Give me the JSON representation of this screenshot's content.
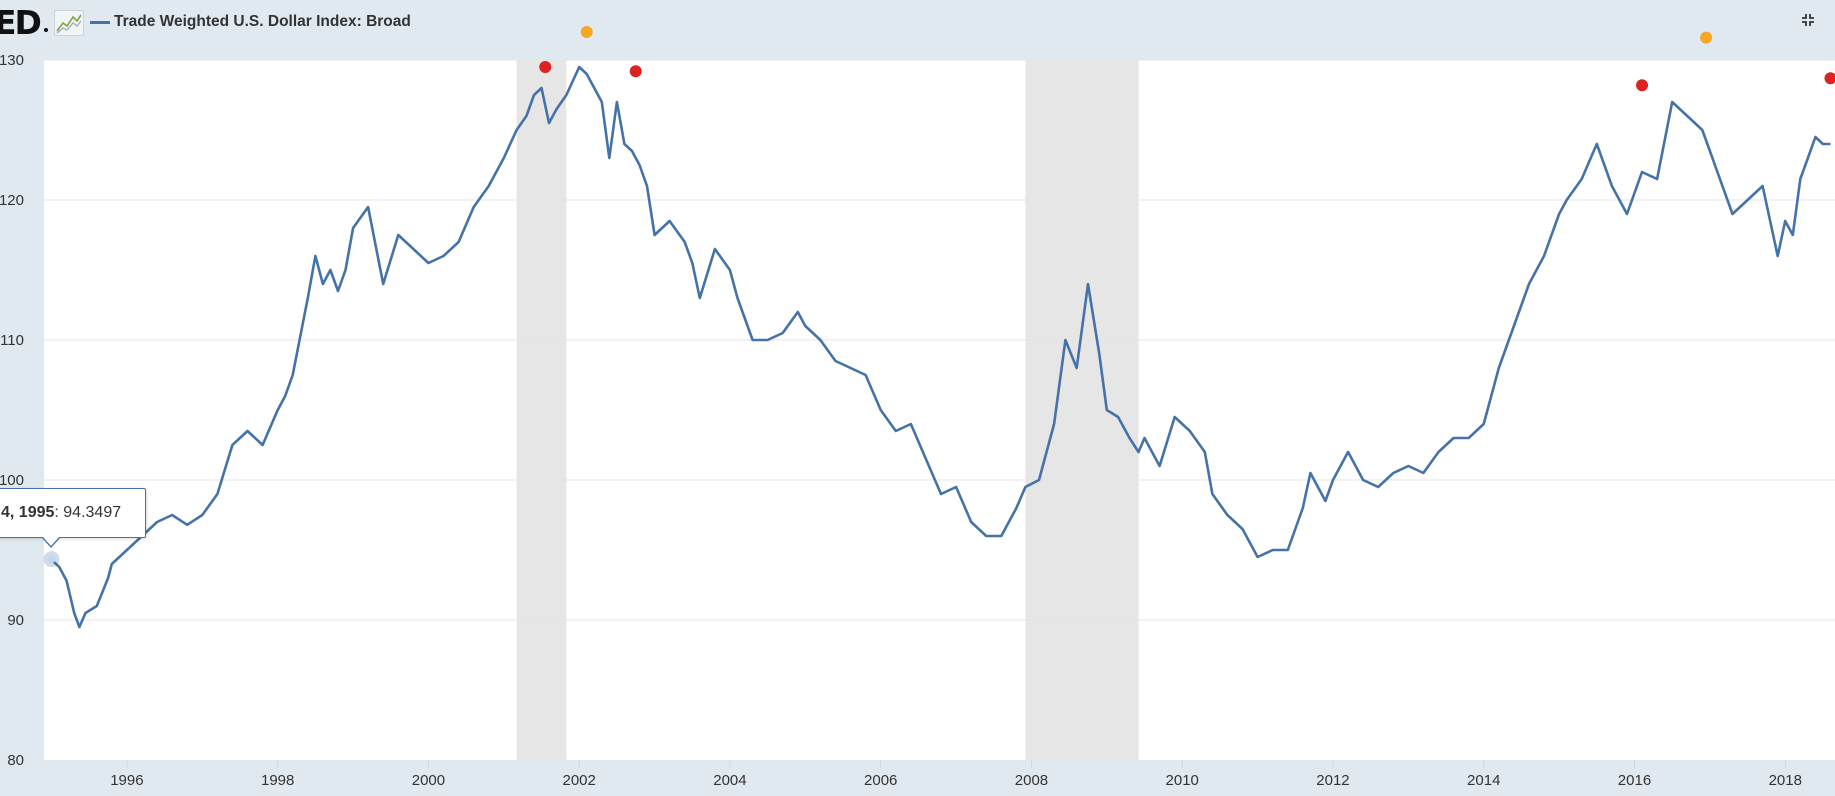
{
  "header": {
    "logo_text": "ED",
    "series_title": "Trade Weighted U.S. Dollar Index: Broad",
    "spark_icon": "sparkline-icon",
    "collapse_icon": "collapse-icon"
  },
  "tooltip": {
    "date": "4, 1995",
    "separator": ": ",
    "value": "94.3497"
  },
  "chart_data": {
    "type": "line",
    "title": "Trade Weighted U.S. Dollar Index: Broad",
    "xlabel": "",
    "ylabel": "",
    "xlim": [
      1994.9,
      2018.66
    ],
    "ylim": [
      80,
      130
    ],
    "yticks": [
      80,
      90,
      100,
      110,
      120,
      130
    ],
    "xticks": [
      1996,
      1998,
      2000,
      2002,
      2004,
      2006,
      2008,
      2010,
      2012,
      2014,
      2016,
      2018
    ],
    "grid": true,
    "line_color": "#4572a7",
    "recession_color": "#e6e6e6",
    "recessions": [
      {
        "start": 2001.17,
        "end": 2001.83
      },
      {
        "start": 2007.92,
        "end": 2009.42
      }
    ],
    "series": [
      {
        "name": "Trade Weighted U.S. Dollar Index: Broad",
        "x": [
          1995.0,
          1995.1,
          1995.2,
          1995.3,
          1995.37,
          1995.45,
          1995.6,
          1995.75,
          1995.8,
          1995.9,
          1996.0,
          1996.2,
          1996.4,
          1996.6,
          1996.8,
          1997.0,
          1997.2,
          1997.4,
          1997.6,
          1997.8,
          1998.0,
          1998.1,
          1998.2,
          1998.4,
          1998.5,
          1998.6,
          1998.7,
          1998.8,
          1998.9,
          1999.0,
          1999.2,
          1999.4,
          1999.6,
          1999.8,
          2000.0,
          2000.2,
          2000.4,
          2000.6,
          2000.8,
          2001.0,
          2001.17,
          2001.3,
          2001.4,
          2001.5,
          2001.6,
          2001.7,
          2001.83,
          2002.0,
          2002.1,
          2002.3,
          2002.4,
          2002.5,
          2002.6,
          2002.7,
          2002.8,
          2002.9,
          2003.0,
          2003.2,
          2003.4,
          2003.5,
          2003.6,
          2003.8,
          2004.0,
          2004.1,
          2004.3,
          2004.5,
          2004.7,
          2004.9,
          2005.0,
          2005.2,
          2005.4,
          2005.6,
          2005.8,
          2006.0,
          2006.2,
          2006.4,
          2006.6,
          2006.8,
          2007.0,
          2007.2,
          2007.4,
          2007.6,
          2007.8,
          2007.92,
          2008.1,
          2008.3,
          2008.45,
          2008.6,
          2008.75,
          2008.9,
          2009.0,
          2009.15,
          2009.3,
          2009.42,
          2009.5,
          2009.7,
          2009.9,
          2010.1,
          2010.3,
          2010.4,
          2010.6,
          2010.8,
          2011.0,
          2011.2,
          2011.4,
          2011.6,
          2011.7,
          2011.8,
          2011.9,
          2012.0,
          2012.2,
          2012.4,
          2012.6,
          2012.8,
          2013.0,
          2013.2,
          2013.4,
          2013.6,
          2013.8,
          2014.0,
          2014.2,
          2014.4,
          2014.6,
          2014.8,
          2015.0,
          2015.1,
          2015.3,
          2015.5,
          2015.7,
          2015.9,
          2016.0,
          2016.1,
          2016.3,
          2016.5,
          2016.7,
          2016.9,
          2017.0,
          2017.1,
          2017.3,
          2017.5,
          2017.7,
          2017.9,
          2018.0,
          2018.1,
          2018.2,
          2018.3,
          2018.4,
          2018.5,
          2018.6
        ],
        "values": [
          94.3,
          93.8,
          92.8,
          90.5,
          89.5,
          90.5,
          91.0,
          93.0,
          94.0,
          94.5,
          95.0,
          96.0,
          97.0,
          97.5,
          96.8,
          97.5,
          99.0,
          102.5,
          103.5,
          102.5,
          105.0,
          106.0,
          107.5,
          113.0,
          116.0,
          114.0,
          115.0,
          113.5,
          115.0,
          118.0,
          119.5,
          114.0,
          117.5,
          116.5,
          115.5,
          116.0,
          117.0,
          119.5,
          121.0,
          123.0,
          125.0,
          126.0,
          127.5,
          128.0,
          125.5,
          126.5,
          127.5,
          129.5,
          129.0,
          127.0,
          123.0,
          127.0,
          124.0,
          123.5,
          122.5,
          121.0,
          117.5,
          118.5,
          117.0,
          115.5,
          113.0,
          116.5,
          115.0,
          113.0,
          110.0,
          110.0,
          110.5,
          112.0,
          111.0,
          110.0,
          108.5,
          108.0,
          107.5,
          105.0,
          103.5,
          104.0,
          101.5,
          99.0,
          99.5,
          97.0,
          96.0,
          96.0,
          98.0,
          99.5,
          100.0,
          104.0,
          110.0,
          108.0,
          114.0,
          109.0,
          105.0,
          104.5,
          103.0,
          102.0,
          103.0,
          101.0,
          104.5,
          103.5,
          102.0,
          99.0,
          97.5,
          96.5,
          94.5,
          95.0,
          95.0,
          98.0,
          100.5,
          99.5,
          98.5,
          100.0,
          102.0,
          100.0,
          99.5,
          100.5,
          101.0,
          100.5,
          102.0,
          103.0,
          103.0,
          104.0,
          108.0,
          111.0,
          114.0,
          116.0,
          119.0,
          120.0,
          121.5,
          124.0,
          121.0,
          119.0,
          120.5,
          122.0,
          121.5,
          127.0,
          126.0,
          125.0,
          123.5,
          122.0,
          119.0,
          120.0,
          121.0,
          116.0,
          118.5,
          117.5,
          121.5,
          123.0,
          124.5,
          124.0,
          124.0
        ]
      }
    ],
    "markers": [
      {
        "x": 2001.55,
        "y": 129.5,
        "color": "#dd2222"
      },
      {
        "x": 2002.1,
        "y": 132.0,
        "color": "#f5a623"
      },
      {
        "x": 2002.75,
        "y": 129.2,
        "color": "#dd2222"
      },
      {
        "x": 2016.1,
        "y": 128.2,
        "color": "#dd2222"
      },
      {
        "x": 2016.95,
        "y": 131.6,
        "color": "#f5a623"
      },
      {
        "x": 2018.6,
        "y": 128.7,
        "color": "#dd2222"
      }
    ],
    "hover_point": {
      "x": 1995.0,
      "y": 94.3497
    }
  }
}
